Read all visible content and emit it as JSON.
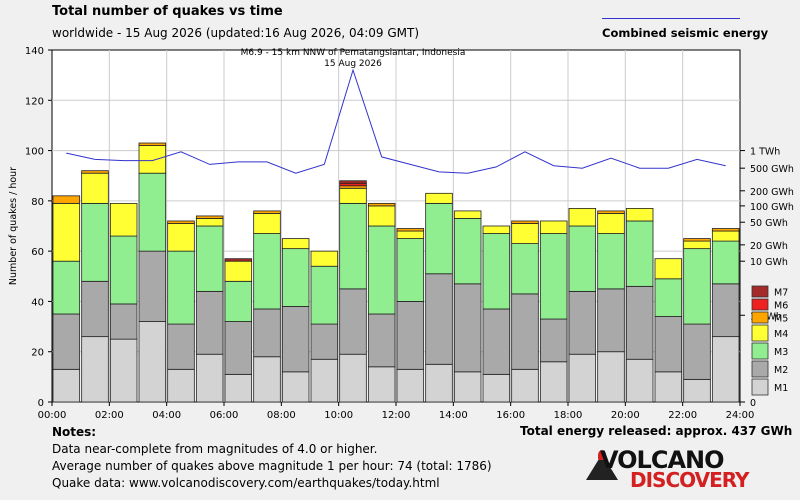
{
  "header": {
    "title": "Total number of quakes vs time",
    "subtitle": "worldwide - 15 Aug 2026 (updated:16 Aug 2026, 04:09 GMT)",
    "energy_legend": "Combined seismic energy"
  },
  "footer": {
    "notes_heading": "Notes:",
    "note1": "Data near-complete from magnitudes of 4.0 or higher.",
    "note2": "Average number of quakes above magnitude 1 per hour: 74 (total: 1786)",
    "note3": "Quake data: www.volcanodiscovery.com/earthquakes/today.html",
    "total_energy": "Total energy released: approx. 437 GWh",
    "logo_line1": "VOLCANO",
    "logo_line2": "DISCOVERY"
  },
  "colors": {
    "M1": "#d3d3d3",
    "M2": "#a9a9a9",
    "M3": "#90ee90",
    "M4": "#ffff33",
    "M5": "#ffa500",
    "M6": "#ee2020",
    "M7": "#a52a2a",
    "energy_line": "#3333cc"
  },
  "chart_data": {
    "type": "bar",
    "stacked": true,
    "xlim": [
      0,
      24
    ],
    "ylim": [
      0,
      140
    ],
    "ylabel": "Number of quakes / hour",
    "x_ticks": [
      "00:00",
      "02:00",
      "04:00",
      "06:00",
      "08:00",
      "10:00",
      "12:00",
      "14:00",
      "16:00",
      "18:00",
      "20:00",
      "22:00",
      "24:00"
    ],
    "y_ticks": [
      0,
      20,
      40,
      60,
      80,
      100,
      120,
      140
    ],
    "categories": [
      "00",
      "01",
      "02",
      "03",
      "04",
      "05",
      "06",
      "07",
      "08",
      "09",
      "10",
      "11",
      "12",
      "13",
      "14",
      "15",
      "16",
      "17",
      "18",
      "19",
      "20",
      "21",
      "22",
      "23"
    ],
    "series": [
      {
        "name": "M1",
        "values": [
          13,
          26,
          25,
          32,
          13,
          19,
          11,
          18,
          12,
          17,
          19,
          14,
          13,
          15,
          12,
          11,
          13,
          16,
          19,
          20,
          17,
          12,
          9,
          26
        ]
      },
      {
        "name": "M2",
        "values": [
          22,
          22,
          14,
          28,
          18,
          25,
          21,
          19,
          26,
          14,
          26,
          21,
          27,
          36,
          35,
          26,
          30,
          17,
          25,
          25,
          29,
          22,
          22,
          21
        ]
      },
      {
        "name": "M3",
        "values": [
          21,
          31,
          27,
          31,
          29,
          26,
          16,
          30,
          23,
          23,
          34,
          35,
          25,
          28,
          26,
          30,
          20,
          34,
          26,
          22,
          26,
          15,
          30,
          17
        ]
      },
      {
        "name": "M4",
        "values": [
          23,
          12,
          13,
          11,
          11,
          3,
          8,
          8,
          4,
          6,
          6,
          8,
          3,
          4,
          3,
          3,
          8,
          5,
          7,
          8,
          5,
          8,
          3,
          4
        ]
      },
      {
        "name": "M5",
        "values": [
          3,
          1,
          0,
          1,
          1,
          1,
          0,
          1,
          0,
          0,
          1,
          1,
          1,
          0,
          0,
          0,
          1,
          0,
          0,
          1,
          0,
          0,
          1,
          1
        ]
      },
      {
        "name": "M6",
        "values": [
          0,
          0,
          0,
          0,
          0,
          0,
          0,
          0,
          0,
          0,
          1,
          0,
          0,
          0,
          0,
          0,
          0,
          0,
          0,
          0,
          0,
          0,
          0,
          0
        ]
      },
      {
        "name": "M7",
        "values": [
          0,
          0,
          0,
          0,
          0,
          0,
          1,
          0,
          0,
          0,
          1,
          0,
          0,
          0,
          0,
          0,
          0,
          0,
          0,
          0,
          0,
          0,
          0,
          0
        ]
      }
    ],
    "energy_axis": {
      "ticks": [
        {
          "label": "1 TWh",
          "value": 100
        },
        {
          "label": "500 GWh",
          "value": 93
        },
        {
          "label": "200 GWh",
          "value": 84
        },
        {
          "label": "100 GWh",
          "value": 78
        },
        {
          "label": "50 GWh",
          "value": 71.5
        },
        {
          "label": "20 GWh",
          "value": 62.5
        },
        {
          "label": "10 GWh",
          "value": 56
        },
        {
          "label": "1 GWh",
          "value": 34.5
        },
        {
          "label": "0",
          "value": 0
        }
      ]
    },
    "energy_series": {
      "name": "Combined seismic energy",
      "x": [
        0.5,
        1.5,
        2.5,
        3.5,
        4.5,
        5.5,
        6.5,
        7.5,
        8.5,
        9.5,
        10.5,
        11.5,
        12.5,
        13.5,
        14.5,
        15.5,
        16.5,
        17.5,
        18.5,
        19.5,
        20.5,
        21.5,
        22.5,
        23.5
      ],
      "y": [
        99,
        96.5,
        96,
        96,
        99.5,
        94.5,
        95.5,
        95.5,
        91,
        94.5,
        132,
        97.5,
        94.5,
        91.5,
        91,
        93.5,
        99.5,
        94,
        93,
        97,
        93,
        93,
        96.5,
        94
      ]
    },
    "annotation": {
      "line1": "M6.9 - 15 km NNW of Pematangsiantar, Indonesia",
      "line2": "15 Aug 2026",
      "x": 10.5,
      "y": 132
    }
  }
}
